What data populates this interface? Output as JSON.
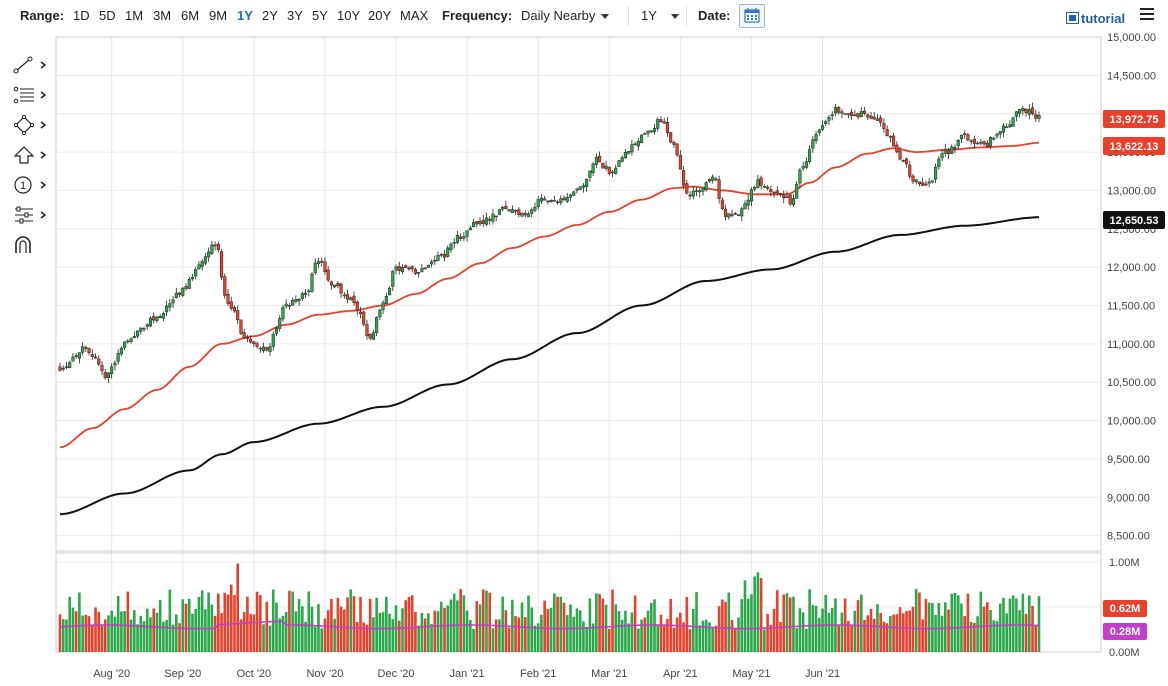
{
  "toolbar": {
    "range_label": "Range:",
    "ranges": [
      "1D",
      "5D",
      "1M",
      "3M",
      "6M",
      "9M",
      "1Y",
      "2Y",
      "3Y",
      "5Y",
      "10Y",
      "20Y",
      "MAX"
    ],
    "active_range": "1Y",
    "frequency_label": "Frequency:",
    "frequency_value": "Daily Nearby",
    "period_value": "1Y",
    "date_label": "Date:",
    "tutorial_label": "tutorial"
  },
  "icons": [
    "trendline-icon",
    "fibonacci-icon",
    "shape-icon",
    "arrow-up-icon",
    "annotation-number-icon",
    "sliders-icon",
    "magnet-icon"
  ],
  "colors": {
    "up": "#2aa84a",
    "down": "#e8402b",
    "sma50": "#e8402b",
    "sma200": "#111111",
    "volume_avg": "#c13fc9",
    "price_tag": "#e8402b",
    "sma_tag_200": "#111111",
    "volume_avg_tag": "#c13fc9"
  },
  "chart_data": {
    "type": "candlestick",
    "instrument_period": "1Y",
    "x_labels": [
      "Aug '20",
      "Sep '20",
      "Oct '20",
      "Nov '20",
      "Dec '20",
      "Jan '21",
      "Feb '21",
      "Mar '21",
      "Apr '21",
      "May '21",
      "Jun '21"
    ],
    "price_axis": {
      "ticks": [
        "15,000.00",
        "14,500.00",
        "14,000.00",
        "13,500.00",
        "13,000.00",
        "12,500.00",
        "12,000.00",
        "11,500.00",
        "11,000.00",
        "10,500.00",
        "10,000.00",
        "9,500.00",
        "9,000.00",
        "8,500.00"
      ],
      "range": [
        8300,
        15000
      ]
    },
    "volume_axis": {
      "ticks": [
        "1.00M",
        "0.50M",
        "0.00M"
      ],
      "range": [
        0,
        1.1
      ]
    },
    "price_anchors": [
      [
        0,
        10700
      ],
      [
        8,
        10950
      ],
      [
        14,
        10600
      ],
      [
        22,
        11100
      ],
      [
        30,
        11350
      ],
      [
        38,
        11700
      ],
      [
        44,
        12100
      ],
      [
        48,
        12320
      ],
      [
        52,
        11500
      ],
      [
        58,
        11050
      ],
      [
        64,
        10950
      ],
      [
        70,
        11500
      ],
      [
        76,
        11650
      ],
      [
        80,
        12100
      ],
      [
        84,
        11800
      ],
      [
        90,
        11600
      ],
      [
        96,
        11100
      ],
      [
        100,
        11500
      ],
      [
        104,
        12000
      ],
      [
        110,
        11950
      ],
      [
        118,
        12150
      ],
      [
        124,
        12400
      ],
      [
        130,
        12600
      ],
      [
        138,
        12750
      ],
      [
        144,
        12700
      ],
      [
        150,
        12900
      ],
      [
        156,
        12850
      ],
      [
        162,
        13050
      ],
      [
        166,
        13400
      ],
      [
        170,
        13250
      ],
      [
        176,
        13550
      ],
      [
        182,
        13800
      ],
      [
        186,
        13900
      ],
      [
        190,
        13600
      ],
      [
        194,
        12950
      ],
      [
        198,
        13000
      ],
      [
        202,
        13200
      ],
      [
        206,
        12650
      ],
      [
        210,
        12700
      ],
      [
        216,
        13100
      ],
      [
        222,
        13000
      ],
      [
        226,
        12850
      ],
      [
        230,
        13300
      ],
      [
        234,
        13750
      ],
      [
        240,
        14050
      ],
      [
        246,
        14000
      ],
      [
        252,
        13950
      ],
      [
        256,
        13750
      ],
      [
        260,
        13450
      ],
      [
        264,
        13150
      ],
      [
        268,
        13050
      ],
      [
        274,
        13500
      ],
      [
        280,
        13700
      ],
      [
        286,
        13600
      ],
      [
        292,
        13800
      ],
      [
        298,
        14050
      ],
      [
        303,
        13970
      ]
    ],
    "sma50_anchors": [
      [
        0,
        9650
      ],
      [
        10,
        9900
      ],
      [
        20,
        10150
      ],
      [
        30,
        10400
      ],
      [
        40,
        10700
      ],
      [
        50,
        11000
      ],
      [
        60,
        11100
      ],
      [
        70,
        11250
      ],
      [
        80,
        11380
      ],
      [
        90,
        11430
      ],
      [
        100,
        11500
      ],
      [
        110,
        11650
      ],
      [
        120,
        11850
      ],
      [
        130,
        12050
      ],
      [
        140,
        12250
      ],
      [
        150,
        12400
      ],
      [
        160,
        12550
      ],
      [
        170,
        12720
      ],
      [
        180,
        12880
      ],
      [
        190,
        13030
      ],
      [
        196,
        13050
      ],
      [
        205,
        13000
      ],
      [
        215,
        12950
      ],
      [
        225,
        12950
      ],
      [
        232,
        13100
      ],
      [
        240,
        13300
      ],
      [
        250,
        13480
      ],
      [
        258,
        13550
      ],
      [
        265,
        13500
      ],
      [
        275,
        13530
      ],
      [
        285,
        13560
      ],
      [
        295,
        13580
      ],
      [
        303,
        13622
      ]
    ],
    "sma200_anchors": [
      [
        0,
        8780
      ],
      [
        20,
        9050
      ],
      [
        40,
        9350
      ],
      [
        50,
        9560
      ],
      [
        60,
        9720
      ],
      [
        80,
        9960
      ],
      [
        100,
        10180
      ],
      [
        120,
        10470
      ],
      [
        140,
        10800
      ],
      [
        160,
        11140
      ],
      [
        180,
        11500
      ],
      [
        200,
        11820
      ],
      [
        220,
        11970
      ],
      [
        240,
        12200
      ],
      [
        260,
        12420
      ],
      [
        280,
        12540
      ],
      [
        303,
        12650
      ]
    ],
    "volume_avg_level": 0.28,
    "last_values": {
      "price": "13,972.75",
      "sma50": "13,622.13",
      "sma200": "12,650.53",
      "volume": "0.62M",
      "volume_avg": "0.28M"
    },
    "grid": true
  }
}
